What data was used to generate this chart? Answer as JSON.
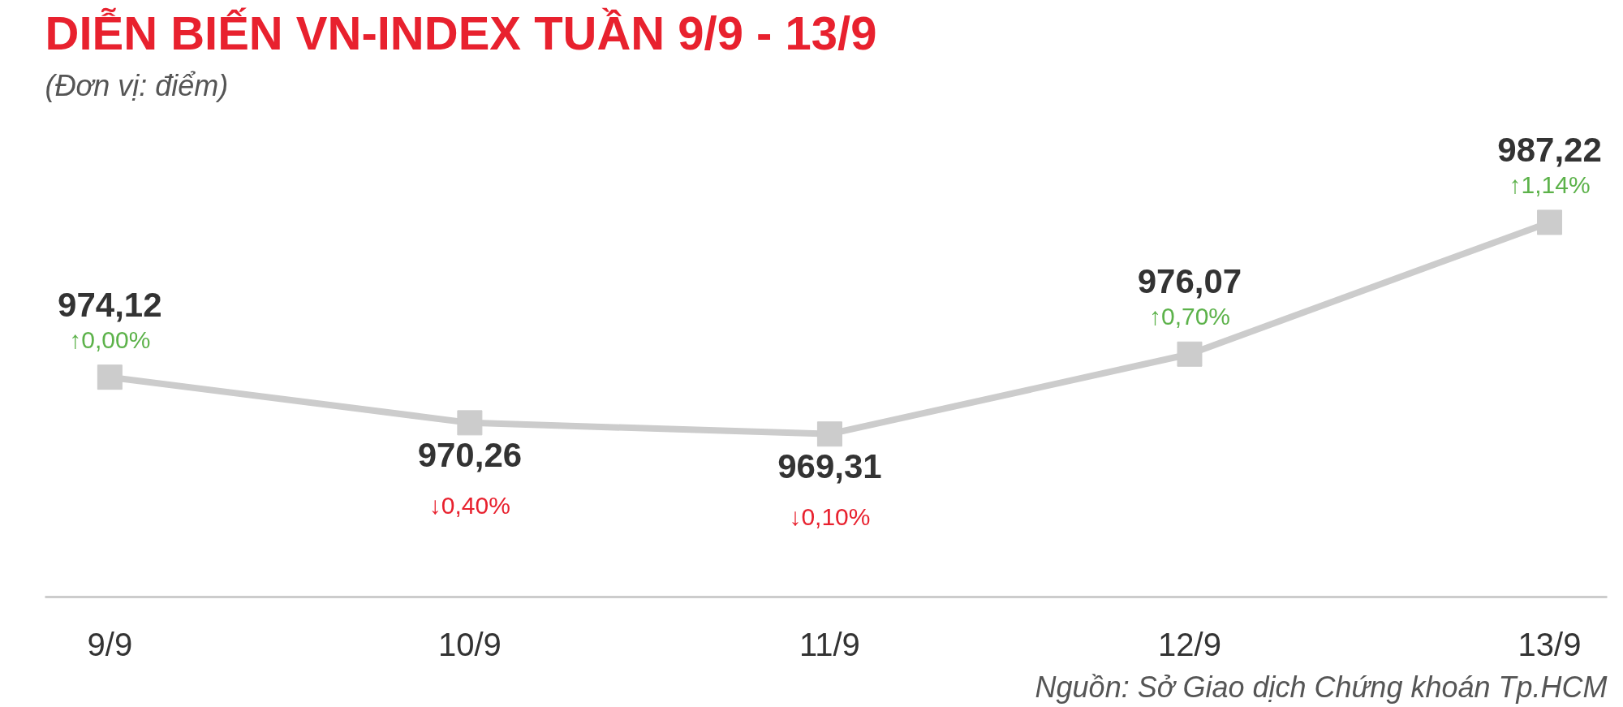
{
  "chart_data": {
    "type": "line",
    "title": "DIỄN BIẾN VN-INDEX TUẦN 9/9 - 13/9",
    "subtitle": "(Đơn vị: điểm)",
    "categories": [
      "9/9",
      "10/9",
      "11/9",
      "12/9",
      "13/9"
    ],
    "series": [
      {
        "color": "#cccccc",
        "values": [
          974.12,
          970.26,
          969.31,
          976.07,
          987.22
        ],
        "value_labels": [
          "974,12",
          "970,26",
          "969,31",
          "976,07",
          "987,22"
        ]
      }
    ],
    "marker": "square",
    "grid": false,
    "annotations": [
      {
        "text": "↑0,00%",
        "x": "9/9",
        "y": 974.12
      },
      {
        "text": "↓0,40%",
        "x": "10/9",
        "y": 970.26
      },
      {
        "text": "↓0,10%",
        "x": "11/9",
        "y": 969.31
      },
      {
        "text": "↑0,70%",
        "x": "12/9",
        "y": 976.07
      },
      {
        "text": "↑1,14%",
        "x": "13/9",
        "y": 987.22
      },
      "Nguồn: Sở Giao dịch Chứng khoán Tp.HCM"
    ]
  }
}
